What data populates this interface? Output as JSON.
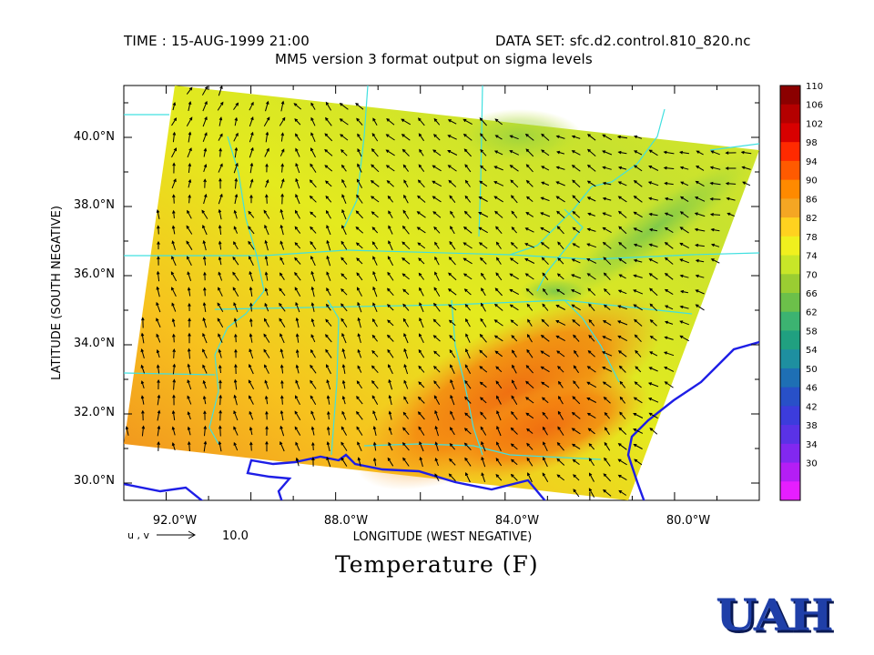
{
  "header": {
    "time_label": "TIME : 15-AUG-1999 21:00",
    "dataset_label": "DATA SET: sfc.d2.control.810_820.nc",
    "subtitle": "MM5 version 3 format output on sigma levels"
  },
  "chart_title": "Temperature (F)",
  "logo_text": "UAH",
  "vector_key": {
    "label": "u , v",
    "value": "10.0"
  },
  "colorbar": {
    "levels": [
      "110",
      "106",
      "102",
      "98",
      "94",
      "90",
      "86",
      "82",
      "78",
      "74",
      "70",
      "66",
      "62",
      "58",
      "54",
      "50",
      "46",
      "42",
      "38",
      "34",
      "30"
    ],
    "colors": [
      "#8b0000",
      "#b40000",
      "#d80000",
      "#ff2a00",
      "#ff5a00",
      "#ff8a00",
      "#f5a623",
      "#ffd21f",
      "#f0f01e",
      "#c8e628",
      "#9acd32",
      "#6cc04a",
      "#3cb371",
      "#20a080",
      "#1e8fa0",
      "#1e6fb4",
      "#2850c8",
      "#3c3cdc",
      "#5a32e6",
      "#8228f0",
      "#b41ef5",
      "#e61eff"
    ]
  },
  "chart_data": {
    "type": "heatmap",
    "title": "Temperature (F)",
    "xlabel": "LONGITUDE (WEST NEGATIVE)",
    "ylabel": "LATITUDE (SOUTH NEGATIVE)",
    "x_ticks": [
      "92.0°W",
      "88.0°W",
      "84.0°W",
      "80.0°W"
    ],
    "y_ticks": [
      "40.0°N",
      "38.0°N",
      "36.0°N",
      "34.0°N",
      "32.0°N",
      "30.0°N"
    ],
    "xlim": [
      -93.0,
      -78.0
    ],
    "ylim": [
      29.5,
      41.5
    ],
    "x_tick_values": [
      -92,
      -88,
      -84,
      -80
    ],
    "y_tick_values": [
      40,
      38,
      36,
      34,
      32,
      30
    ],
    "colorbar_range": [
      30,
      110
    ],
    "colorbar_step": 4
  }
}
